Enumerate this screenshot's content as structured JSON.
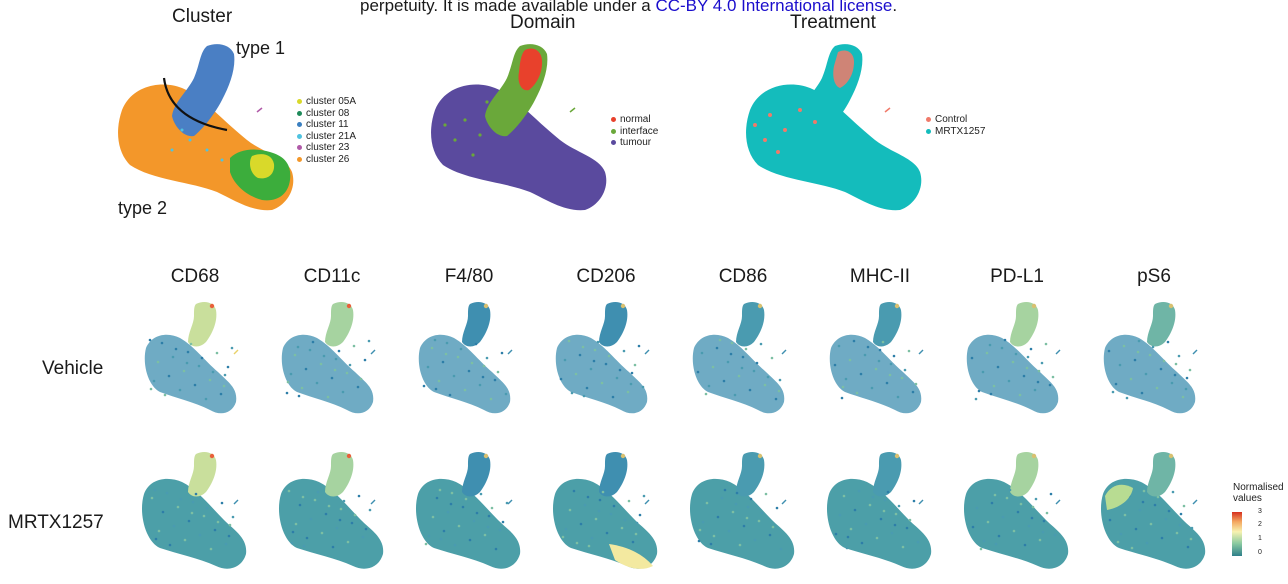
{
  "header": {
    "prefix": "perpetuity. It is made available under a ",
    "link": "CC-BY 4.0 International license",
    "suffix": "."
  },
  "top_panels": [
    {
      "title": "Cluster",
      "annotations": [
        "type 1",
        "type 2"
      ],
      "legend": [
        {
          "label": "cluster 05A",
          "color": "#d9d92a"
        },
        {
          "label": "cluster 08",
          "color": "#1e8a5a"
        },
        {
          "label": "cluster 11",
          "color": "#3a7fc0"
        },
        {
          "label": "cluster 21A",
          "color": "#4fc3e0"
        },
        {
          "label": "cluster 23",
          "color": "#b05aa8"
        },
        {
          "label": "cluster 26",
          "color": "#f3972a"
        }
      ]
    },
    {
      "title": "Domain",
      "legend": [
        {
          "label": "normal",
          "color": "#e8412c"
        },
        {
          "label": "interface",
          "color": "#6aa83a"
        },
        {
          "label": "tumour",
          "color": "#5a4a9e"
        }
      ]
    },
    {
      "title": "Treatment",
      "legend": [
        {
          "label": "Control",
          "color": "#f07a6a"
        },
        {
          "label": "MRTX1257",
          "color": "#14bcbc"
        }
      ]
    }
  ],
  "markers": [
    "CD68",
    "CD11c",
    "F4/80",
    "CD206",
    "CD86",
    "MHC-II",
    "PD-L1",
    "pS6"
  ],
  "conditions": [
    "Vehicle",
    "MRTX1257"
  ],
  "colorbar": {
    "title_line1": "Normalised",
    "title_line2": "values",
    "ticks": [
      "3",
      "2",
      "1",
      "0"
    ]
  }
}
